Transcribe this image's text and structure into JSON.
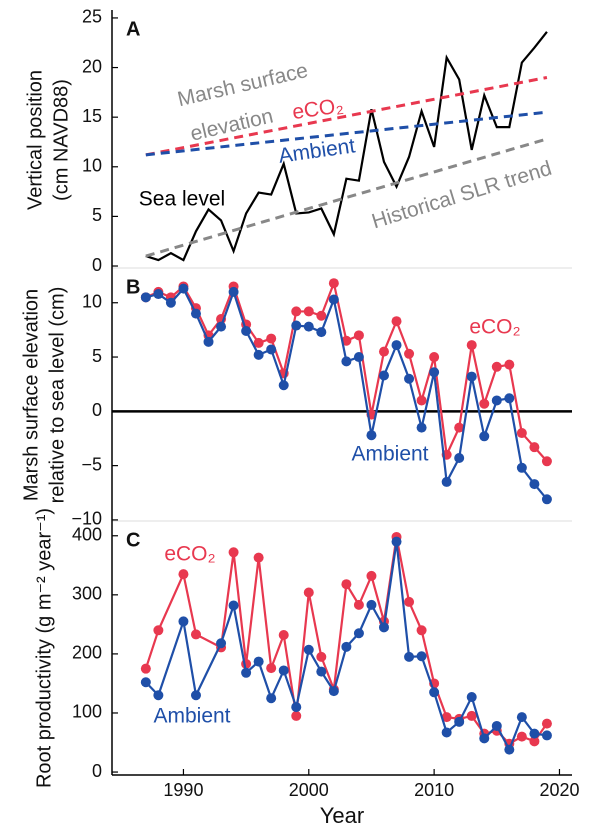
{
  "chart_data": [
    {
      "type": "line",
      "panel_label": "A",
      "ylabel": [
        "Vertical position",
        "(cm NAVD88)"
      ],
      "xlim": [
        1984.3,
        2021
      ],
      "ylim": [
        -0.2,
        25.8
      ],
      "yticks": [
        0,
        5,
        10,
        15,
        20,
        25
      ],
      "series": [
        {
          "name": "Sea level",
          "color": "#000000",
          "dashed": false,
          "markers": false,
          "x": [
            1987,
            1988,
            1989,
            1990,
            1991,
            1992,
            1993,
            1994,
            1995,
            1996,
            1997,
            1998,
            1999,
            2000,
            2001,
            2002,
            2003,
            2004,
            2005,
            2006,
            2007,
            2008,
            2009,
            2010,
            2011,
            2012,
            2013,
            2014,
            2015,
            2016,
            2017,
            2018,
            2019
          ],
          "values": [
            1.0,
            0.6,
            1.3,
            0.6,
            3.5,
            5.7,
            4.6,
            1.5,
            5.3,
            7.4,
            7.2,
            10.3,
            5.3,
            5.4,
            5.8,
            3.2,
            8.8,
            8.6,
            15.8,
            10.5,
            8.0,
            11.0,
            15.6,
            12.0,
            21.0,
            18.8,
            11.7,
            17.2,
            14.0,
            14.0,
            20.5,
            22.0,
            23.6
          ]
        },
        {
          "name": "Marsh surface elevation eCO₂",
          "color": "#e8384f",
          "dashed": true,
          "markers": false,
          "x": [
            1987,
            2019
          ],
          "values": [
            11.2,
            19.0
          ]
        },
        {
          "name": "Marsh surface elevation Ambient",
          "color": "#1f4fa8",
          "dashed": true,
          "markers": false,
          "x": [
            1987,
            2019
          ],
          "values": [
            11.2,
            15.5
          ]
        },
        {
          "name": "Historical SLR trend",
          "color": "#888888",
          "dashed": true,
          "markers": false,
          "x": [
            1987,
            2019
          ],
          "values": [
            1.0,
            12.8
          ]
        }
      ],
      "annotations": [
        {
          "text": "Marsh surface",
          "color": "#888888"
        },
        {
          "text": "elevation",
          "color": "#888888"
        },
        {
          "text": "eCO₂",
          "color": "#e8384f"
        },
        {
          "text": "Ambient",
          "color": "#1f4fa8"
        },
        {
          "text": "Sea level",
          "color": "#000000"
        },
        {
          "text": "Historical SLR trend",
          "color": "#888888"
        }
      ]
    },
    {
      "type": "line",
      "panel_label": "B",
      "ylabel": [
        "Marsh surface elevation",
        "relative to sea level (cm)"
      ],
      "xlim": [
        1984.3,
        2021
      ],
      "ylim": [
        -10.1,
        13.2
      ],
      "yticks": [
        10,
        5,
        0,
        {
          "value": -5,
          "label": "−5"
        },
        {
          "value": -10,
          "label": "−10"
        }
      ],
      "hline": 0,
      "series": [
        {
          "name": "eCO₂",
          "color": "#e8384f",
          "dashed": false,
          "markers": true,
          "x": [
            1987,
            1988,
            1989,
            1990,
            1991,
            1992,
            1993,
            1994,
            1995,
            1996,
            1997,
            1998,
            1999,
            2000,
            2001,
            2002,
            2003,
            2004,
            2005,
            2006,
            2007,
            2008,
            2009,
            2010,
            2011,
            2012,
            2013,
            2014,
            2015,
            2016,
            2017,
            2018,
            2019
          ],
          "values": [
            10.5,
            11.0,
            10.5,
            11.5,
            9.5,
            7.0,
            8.5,
            11.5,
            8.0,
            6.3,
            6.7,
            3.5,
            9.2,
            9.2,
            8.8,
            11.8,
            6.5,
            7.0,
            -0.3,
            5.5,
            8.3,
            5.3,
            1.0,
            5.0,
            -4.0,
            -1.5,
            6.1,
            0.7,
            4.1,
            4.3,
            -2.0,
            -3.3,
            -4.6
          ]
        },
        {
          "name": "Ambient",
          "color": "#1f4fa8",
          "dashed": false,
          "markers": true,
          "x": [
            1987,
            1988,
            1989,
            1990,
            1991,
            1992,
            1993,
            1994,
            1995,
            1996,
            1997,
            1998,
            1999,
            2000,
            2001,
            2002,
            2003,
            2004,
            2005,
            2006,
            2007,
            2008,
            2009,
            2010,
            2011,
            2012,
            2013,
            2014,
            2015,
            2016,
            2017,
            2018,
            2019
          ],
          "values": [
            10.5,
            10.8,
            10.0,
            11.3,
            9.0,
            6.4,
            7.8,
            11.0,
            7.4,
            5.2,
            5.7,
            2.4,
            7.9,
            7.8,
            7.3,
            10.3,
            4.6,
            5.0,
            -2.2,
            3.3,
            6.1,
            3.0,
            -1.5,
            3.6,
            -6.5,
            -4.3,
            3.2,
            -2.3,
            1.0,
            1.2,
            -5.2,
            -6.7,
            -8.1
          ]
        }
      ],
      "annotations": [
        {
          "text": "eCO₂",
          "color": "#e8384f"
        },
        {
          "text": "Ambient",
          "color": "#1f4fa8"
        }
      ]
    },
    {
      "type": "line",
      "panel_label": "C",
      "ylabel": [
        "Root productivity (g m⁻² year⁻¹)"
      ],
      "xlabel": "Year",
      "xlim": [
        1984.3,
        2021
      ],
      "xticks": [
        1990,
        2000,
        2010,
        2020
      ],
      "ylim": [
        -5,
        425
      ],
      "yticks": [
        0,
        100,
        200,
        300,
        400
      ],
      "series": [
        {
          "name": "eCO₂",
          "color": "#e8384f",
          "dashed": false,
          "markers": true,
          "x": [
            1987,
            1988,
            1990,
            1991,
            1993,
            1994,
            1995,
            1996,
            1997,
            1998,
            1999,
            2000,
            2001,
            2002,
            2003,
            2004,
            2005,
            2006,
            2007,
            2008,
            2009,
            2010,
            2011,
            2012,
            2013,
            2014,
            2015,
            2016,
            2017,
            2018,
            2019
          ],
          "values": [
            175,
            240,
            335,
            233,
            211,
            372,
            183,
            363,
            176,
            232,
            95,
            304,
            195,
            140,
            318,
            283,
            332,
            255,
            398,
            288,
            240,
            150,
            93,
            90,
            95,
            65,
            70,
            48,
            60,
            52,
            82
          ]
        },
        {
          "name": "Ambient",
          "color": "#1f4fa8",
          "dashed": false,
          "markers": true,
          "x": [
            1987,
            1988,
            1990,
            1991,
            1993,
            1994,
            1995,
            1996,
            1997,
            1998,
            1999,
            2000,
            2001,
            2002,
            2003,
            2004,
            2005,
            2006,
            2007,
            2008,
            2009,
            2010,
            2011,
            2012,
            2013,
            2014,
            2015,
            2016,
            2017,
            2018,
            2019
          ],
          "values": [
            152,
            130,
            255,
            130,
            218,
            282,
            168,
            187,
            125,
            172,
            110,
            207,
            170,
            137,
            212,
            235,
            283,
            245,
            390,
            195,
            196,
            135,
            67,
            85,
            127,
            57,
            78,
            38,
            93,
            65,
            62
          ]
        }
      ],
      "annotations": [
        {
          "text": "eCO₂",
          "color": "#e8384f"
        },
        {
          "text": "Ambient",
          "color": "#1f4fa8"
        }
      ]
    }
  ]
}
